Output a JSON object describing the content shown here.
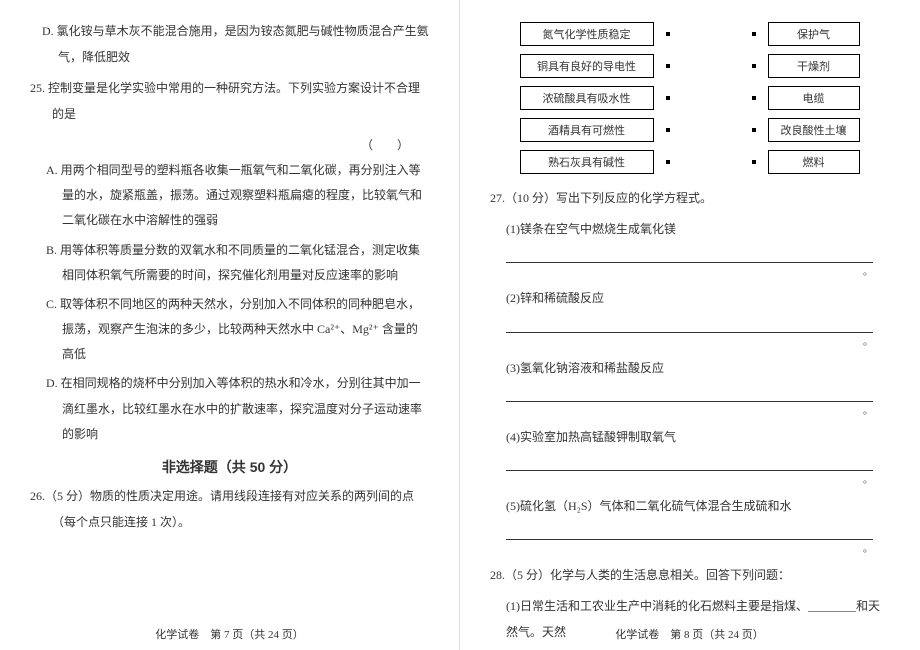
{
  "left": {
    "opt_d_text": "D. 氯化铵与草木灰不能混合施用，是因为铵态氮肥与碱性物质混合产生氨气，降低肥效",
    "q25": "25. 控制变量是化学实验中常用的一种研究方法。下列实验方案设计不合理的是",
    "paren": "（　　）",
    "opt_a": "A. 用两个相同型号的塑料瓶各收集一瓶氧气和二氧化碳，再分别注入等量的水，旋紧瓶盖，振荡。通过观察塑料瓶扁瘪的程度，比较氧气和二氧化碳在水中溶解性的强弱",
    "opt_b": "B. 用等体积等质量分数的双氧水和不同质量的二氧化锰混合，测定收集相同体积氧气所需要的时间，探究催化剂用量对反应速率的影响",
    "opt_c": "C. 取等体积不同地区的两种天然水，分别加入不同体积的同种肥皂水，振荡，观察产生泡沫的多少，比较两种天然水中 Ca²⁺、Mg²⁺ 含量的高低",
    "opt_d": "D. 在相同规格的烧杯中分别加入等体积的热水和冷水，分别往其中加一滴红墨水，比较红墨水在水中的扩散速率，探究温度对分子运动速率的影响",
    "section": "非选择题（共 50 分）",
    "q26": "26.（5 分）物质的性质决定用途。请用线段连接有对应关系的两列间的点（每个点只能连接 1 次）。",
    "footer": "化学试卷　第 7 页（共 24 页）"
  },
  "right": {
    "match": [
      {
        "l": "氮气化学性质稳定",
        "r": "保护气"
      },
      {
        "l": "铜具有良好的导电性",
        "r": "干燥剂"
      },
      {
        "l": "浓硫酸具有吸水性",
        "r": "电缆"
      },
      {
        "l": "酒精具有可燃性",
        "r": "改良酸性土壤"
      },
      {
        "l": "熟石灰具有碱性",
        "r": "燃料"
      }
    ],
    "q27": "27.（10 分）写出下列反应的化学方程式。",
    "q27_1": "(1)镁条在空气中燃烧生成氧化镁",
    "q27_2": "(2)锌和稀硫酸反应",
    "q27_3": "(3)氢氧化钠溶液和稀盐酸反应",
    "q27_4": "(4)实验室加热高锰酸钾制取氧气",
    "q27_5": "(5)硫化氢（H₂S）气体和二氧化硫气体混合生成硫和水",
    "q28": "28.（5 分）化学与人类的生活息息相关。回答下列问题：",
    "q28_1": "(1)日常生活和工农业生产中消耗的化石燃料主要是指煤、________和天然气。天然",
    "period": "。",
    "footer": "化学试卷　第 8 页（共 24 页）"
  },
  "colors": {
    "text": "#333333",
    "border": "#000000",
    "bg": "#ffffff"
  }
}
